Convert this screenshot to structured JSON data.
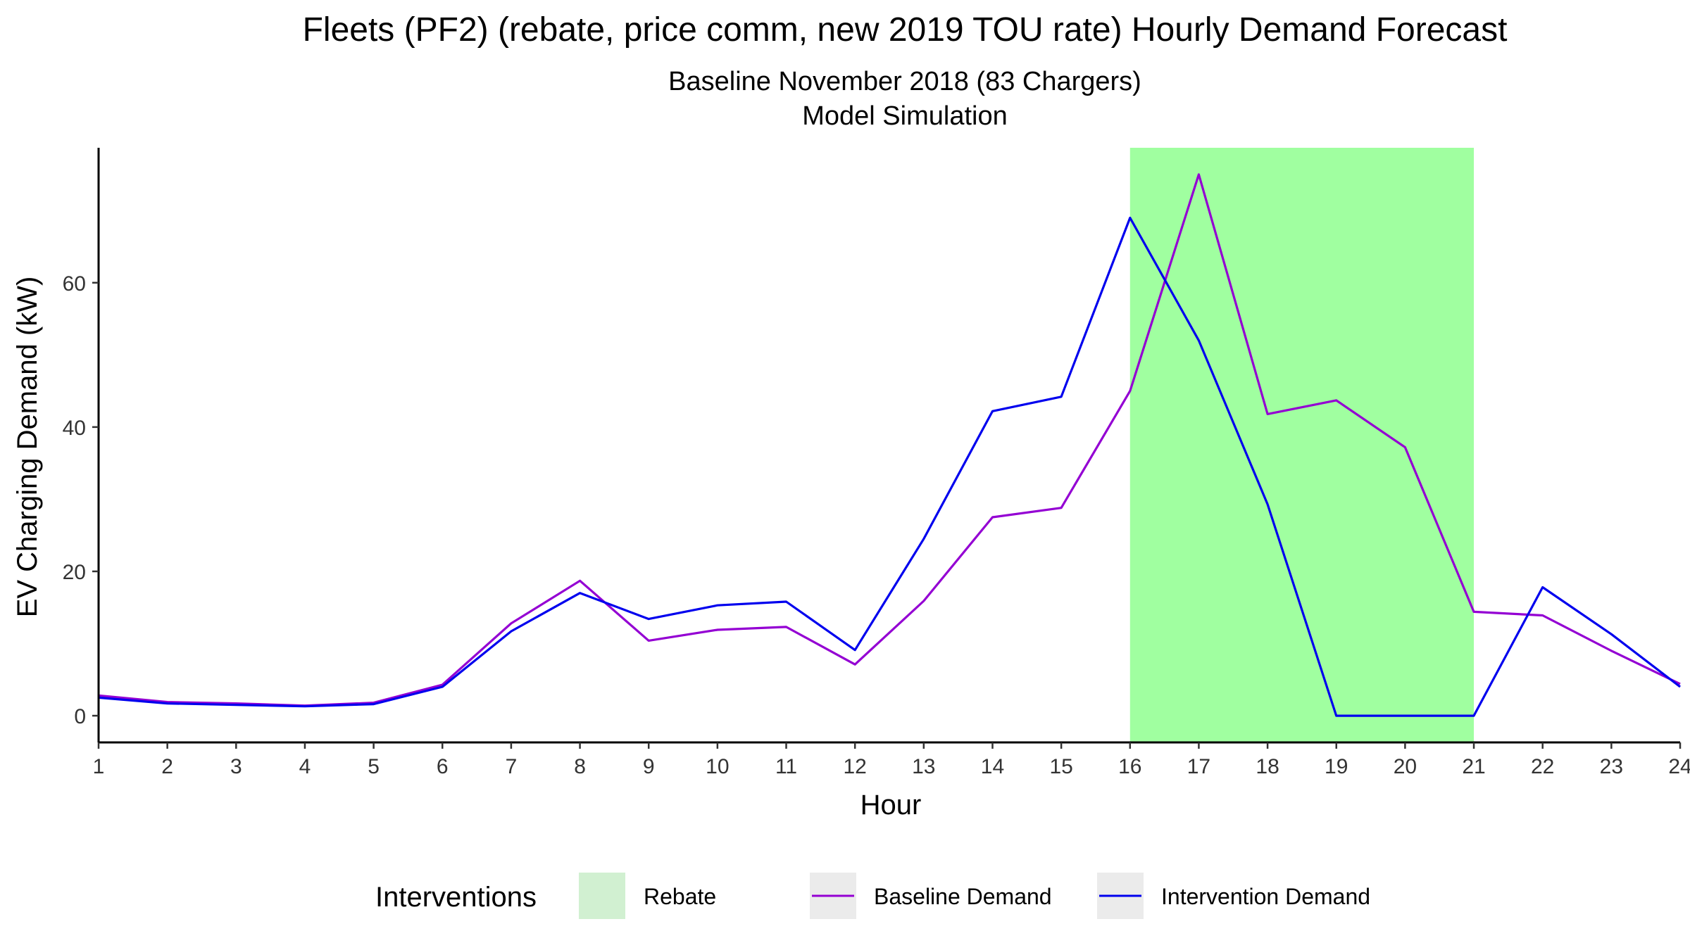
{
  "chart_data": {
    "type": "line",
    "title": "Fleets (PF2) (rebate, price comm, new 2019 TOU rate) Hourly Demand Forecast",
    "subtitle_lines": [
      "Baseline November 2018 (83 Chargers)",
      "Model Simulation"
    ],
    "xlabel": "Hour",
    "ylabel": "EV Charging Demand (kW)",
    "x": [
      1,
      2,
      3,
      4,
      5,
      6,
      7,
      8,
      9,
      10,
      11,
      12,
      13,
      14,
      15,
      16,
      17,
      18,
      19,
      20,
      21,
      22,
      23,
      24
    ],
    "x_tick_labels": [
      "1",
      "2",
      "3",
      "4",
      "5",
      "6",
      "7",
      "8",
      "9",
      "10",
      "11",
      "12",
      "13",
      "14",
      "15",
      "16",
      "17",
      "18",
      "19",
      "20",
      "21",
      "22",
      "23",
      "24"
    ],
    "y_ticks": [
      0,
      20,
      40,
      60
    ],
    "y_tick_labels": [
      "0",
      "20",
      "40",
      "60"
    ],
    "xlim": [
      1,
      24
    ],
    "ylim": [
      -3.7,
      78.7
    ],
    "grid": false,
    "series": [
      {
        "name": "Baseline Demand",
        "color": "#9400D3",
        "values": [
          2.8,
          1.9,
          1.7,
          1.4,
          1.8,
          4.3,
          12.8,
          18.7,
          10.4,
          11.9,
          12.3,
          7.1,
          15.9,
          27.5,
          28.8,
          45.0,
          75.0,
          41.8,
          43.7,
          37.2,
          14.4,
          13.9,
          9.0,
          4.4
        ]
      },
      {
        "name": "Intervention Demand",
        "color": "#0000EE",
        "values": [
          2.5,
          1.7,
          1.5,
          1.3,
          1.6,
          4.0,
          11.7,
          17.0,
          13.4,
          15.3,
          15.8,
          9.1,
          24.5,
          42.2,
          44.2,
          69.0,
          52.0,
          29.3,
          0.0,
          0.0,
          0.0,
          17.8,
          11.3,
          4.0
        ]
      }
    ],
    "shaded_regions": [
      {
        "name": "Rebate",
        "x_start": 16,
        "x_end": 21,
        "color": "#A0FFA0"
      }
    ],
    "legend": {
      "title": "Interventions",
      "placement": "bottom",
      "items": [
        {
          "label": "Rebate",
          "kind": "fill",
          "color": "#D1F0D1"
        },
        {
          "label": "Baseline Demand",
          "kind": "line",
          "color": "#9400D3"
        },
        {
          "label": "Intervention Demand",
          "kind": "line",
          "color": "#0000EE"
        }
      ]
    }
  }
}
